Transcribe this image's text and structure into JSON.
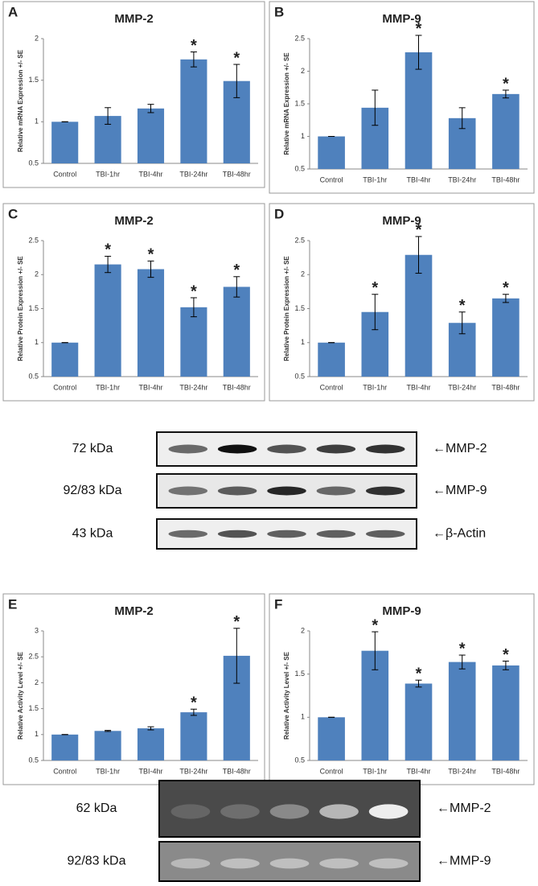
{
  "chart_data": [
    {
      "type": "bar",
      "panel": "A",
      "title": "MMP-2",
      "y_label": "Relative mRNA Expression +/- SE",
      "categories": [
        "Control",
        "TBI-1hr",
        "TBI-4hr",
        "TBI-24hr",
        "TBI-48hr"
      ],
      "values": [
        1,
        1.07,
        1.16,
        1.75,
        1.49
      ],
      "errors": [
        0,
        0.1,
        0.05,
        0.09,
        0.2
      ],
      "markers": [
        null,
        null,
        null,
        "*",
        "*"
      ],
      "color": "#4f81bd",
      "ylim": [
        0.5,
        2
      ],
      "yticks": [
        0.5,
        1,
        1.5,
        2
      ]
    },
    {
      "type": "bar",
      "panel": "B",
      "title": "MMP-9",
      "y_label": "Relative mRNA Expression +/- SE",
      "categories": [
        "Control",
        "TBI-1hr",
        "TBI-4hr",
        "TBI-24hr",
        "TBI-48hr"
      ],
      "values": [
        1,
        1.44,
        2.29,
        1.28,
        1.65
      ],
      "errors": [
        0,
        0.27,
        0.26,
        0.16,
        0.06
      ],
      "markers": [
        null,
        null,
        "*",
        null,
        "*"
      ],
      "color": "#4f81bd",
      "ylim": [
        0.5,
        2.5
      ],
      "yticks": [
        0.5,
        1,
        1.5,
        2,
        2.5
      ]
    },
    {
      "type": "bar",
      "panel": "C",
      "title": "MMP-2",
      "y_label": "Relative Protein Expression +/- SE",
      "categories": [
        "Control",
        "TBI-1hr",
        "TBI-4hr",
        "TBI-24hr",
        "TBI-48hr"
      ],
      "values": [
        1,
        2.15,
        2.08,
        1.52,
        1.82
      ],
      "errors": [
        0,
        0.12,
        0.12,
        0.14,
        0.15
      ],
      "markers": [
        null,
        "*",
        "*",
        "*",
        "*"
      ],
      "color": "#4f81bd",
      "ylim": [
        0.5,
        2.5
      ],
      "yticks": [
        0.5,
        1,
        1.5,
        2,
        2.5
      ]
    },
    {
      "type": "bar",
      "panel": "D",
      "title": "MMP-9",
      "y_label": "Relative Protein Expression +/- SE",
      "categories": [
        "Control",
        "TBI-1hr",
        "TBI-4hr",
        "TBI-24hr",
        "TBI-48hr"
      ],
      "values": [
        1,
        1.45,
        2.29,
        1.29,
        1.65
      ],
      "errors": [
        0,
        0.26,
        0.27,
        0.16,
        0.06
      ],
      "markers": [
        null,
        "*",
        "*",
        "*",
        "*"
      ],
      "color": "#4f81bd",
      "ylim": [
        0.5,
        2.5
      ],
      "yticks": [
        0.5,
        1,
        1.5,
        2,
        2.5
      ]
    },
    {
      "type": "bar",
      "panel": "E",
      "title": "MMP-2",
      "y_label": "Relative Activity Level +/- SE",
      "categories": [
        "Control",
        "TBI-1hr",
        "TBI-4hr",
        "TBI-24hr",
        "TBI-48hr"
      ],
      "values": [
        1,
        1.07,
        1.12,
        1.43,
        2.52
      ],
      "errors": [
        0,
        0.01,
        0.03,
        0.06,
        0.53
      ],
      "markers": [
        null,
        null,
        null,
        "*",
        "*"
      ],
      "color": "#4f81bd",
      "ylim": [
        0.5,
        3
      ],
      "yticks": [
        0.5,
        1,
        1.5,
        2,
        2.5,
        3
      ]
    },
    {
      "type": "bar",
      "panel": "F",
      "title": "MMP-9",
      "y_label": "Relative Activity Level +/- SE",
      "categories": [
        "Control",
        "TBI-1hr",
        "TBI-4hr",
        "TBI-24hr",
        "TBI-48hr"
      ],
      "values": [
        1,
        1.77,
        1.39,
        1.64,
        1.6
      ],
      "errors": [
        0,
        0.22,
        0.04,
        0.08,
        0.05
      ],
      "markers": [
        null,
        "*",
        "*",
        "*",
        "*"
      ],
      "color": "#4f81bd",
      "ylim": [
        0.5,
        2
      ],
      "yticks": [
        0.5,
        1,
        1.5,
        2
      ]
    }
  ],
  "blots": [
    {
      "rows": [
        {
          "size": "72 kDa",
          "protein": "←MMP-2"
        },
        {
          "size": "92/83 kDa",
          "protein": "←MMP-9"
        },
        {
          "size": "43 kDa",
          "protein": "←β-Actin"
        }
      ]
    },
    {
      "rows": [
        {
          "size": "62 kDa",
          "protein": "←MMP-2"
        },
        {
          "size": "92/83 kDa",
          "protein": "←MMP-9"
        }
      ]
    }
  ]
}
